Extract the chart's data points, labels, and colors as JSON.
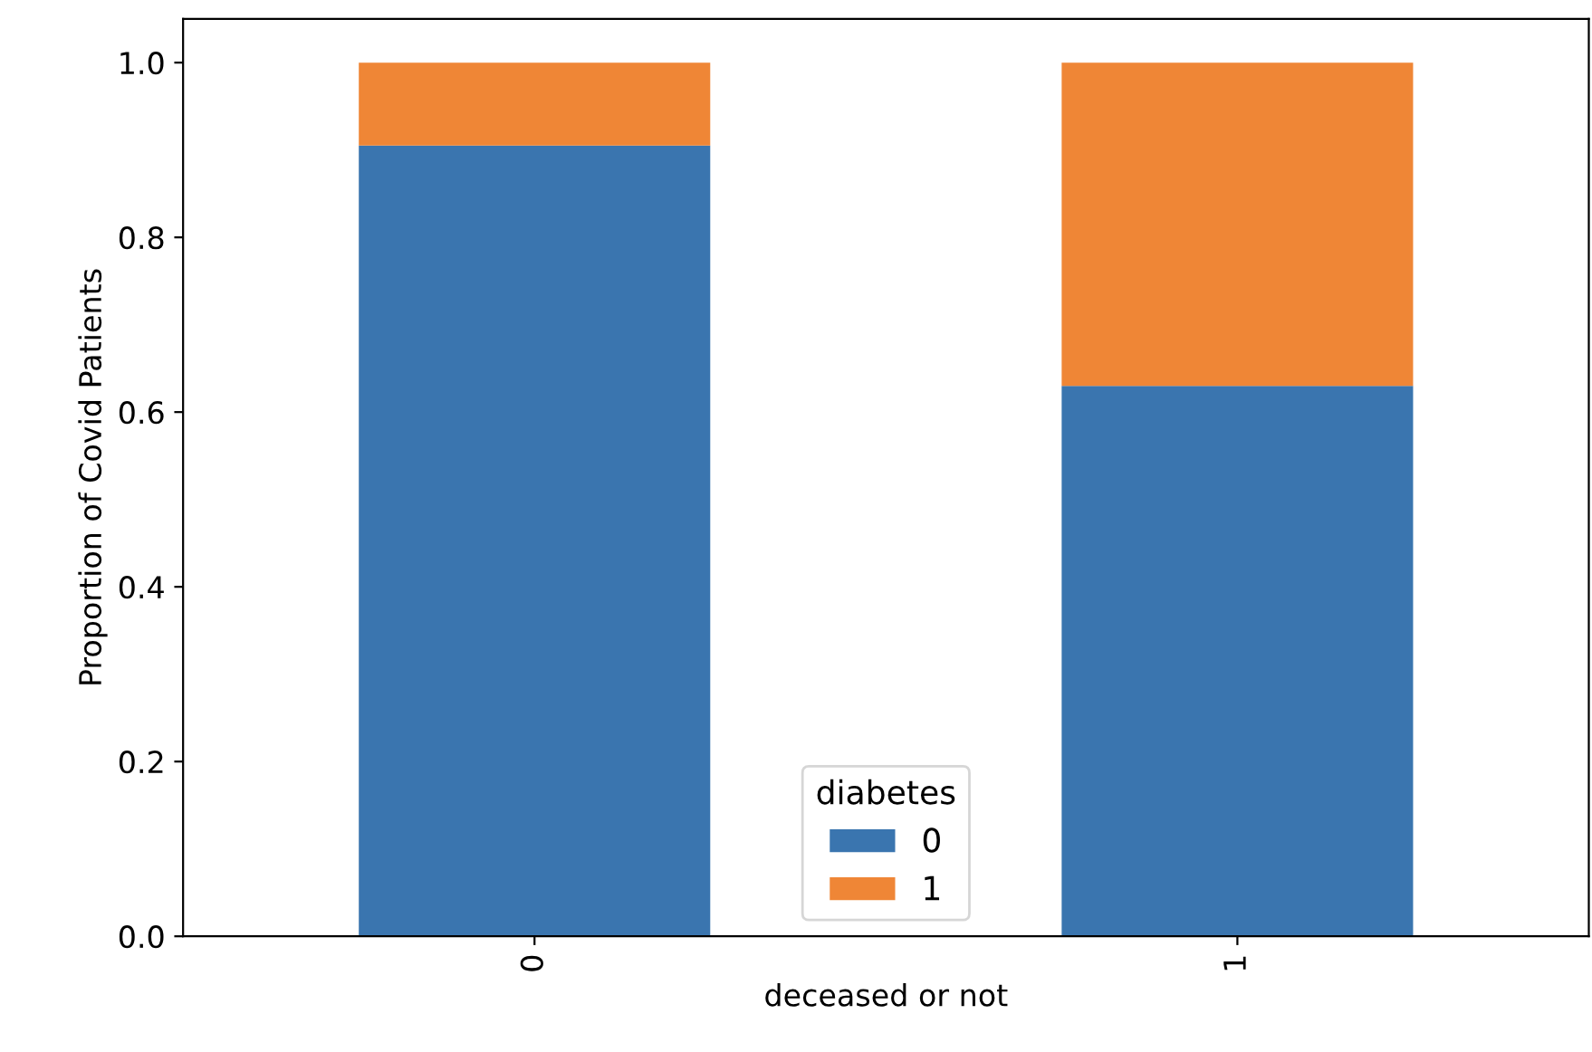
{
  "chart_data": {
    "type": "bar",
    "stacked": true,
    "xlabel": "deceased or not",
    "ylabel": "Proportion of Covid Patients",
    "legend_title": "diabetes",
    "legend": "bottom",
    "categories": [
      "0",
      "1"
    ],
    "series": [
      {
        "name": "0",
        "color": "#3a75af",
        "values": [
          0.905,
          0.63
        ]
      },
      {
        "name": "1",
        "color": "#ef8636",
        "values": [
          0.095,
          0.37
        ]
      }
    ],
    "ylim": [
      0,
      1.05
    ],
    "yticks": [
      {
        "value": 0,
        "label": "0.0"
      },
      0.2,
      0.4,
      0.6,
      0.8,
      {
        "value": 1,
        "label": "1.0"
      }
    ],
    "grid": false
  }
}
